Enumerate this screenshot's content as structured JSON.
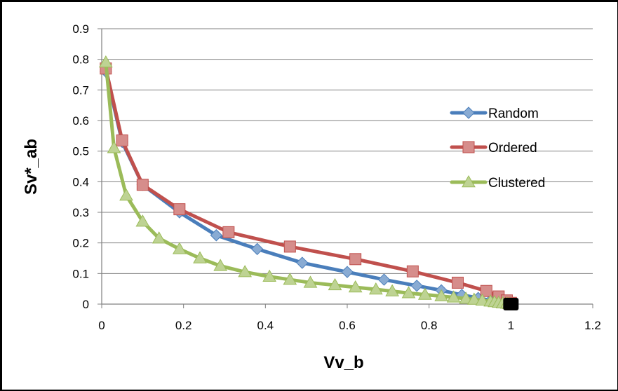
{
  "chart_data": {
    "type": "line",
    "title": "",
    "xlabel": "Vv_b",
    "ylabel": "Sv*_ab",
    "xlim": [
      0,
      1.2
    ],
    "ylim": [
      0,
      0.9
    ],
    "x_ticks": [
      "0",
      "0.2",
      "0.4",
      "0.6",
      "0.8",
      "1",
      "1.2"
    ],
    "y_ticks": [
      "0",
      "0.1",
      "0.2",
      "0.3",
      "0.4",
      "0.5",
      "0.6",
      "0.7",
      "0.8",
      "0.9"
    ],
    "grid": "horizontal",
    "legend_position": "right",
    "series": [
      {
        "name": "Random",
        "color": "#4a7ebb",
        "marker": "diamond",
        "x": [
          0.01,
          0.05,
          0.1,
          0.19,
          0.28,
          0.38,
          0.49,
          0.6,
          0.69,
          0.77,
          0.83,
          0.88,
          0.92,
          0.95,
          0.97,
          0.98,
          0.99,
          1.0
        ],
        "y": [
          0.76,
          0.53,
          0.39,
          0.3,
          0.225,
          0.18,
          0.135,
          0.105,
          0.08,
          0.06,
          0.045,
          0.03,
          0.02,
          0.012,
          0.008,
          0.005,
          0.003,
          0.001
        ]
      },
      {
        "name": "Ordered",
        "color": "#c0504d",
        "marker": "square",
        "x": [
          0.01,
          0.05,
          0.1,
          0.19,
          0.31,
          0.46,
          0.62,
          0.76,
          0.87,
          0.94,
          0.97,
          0.99,
          1.0
        ],
        "y": [
          0.77,
          0.535,
          0.39,
          0.31,
          0.235,
          0.188,
          0.147,
          0.107,
          0.07,
          0.043,
          0.025,
          0.012,
          0.004
        ]
      },
      {
        "name": "Clustered",
        "color": "#9bbb59",
        "marker": "triangle",
        "x": [
          0.01,
          0.03,
          0.06,
          0.1,
          0.14,
          0.19,
          0.24,
          0.29,
          0.35,
          0.41,
          0.46,
          0.51,
          0.57,
          0.62,
          0.67,
          0.71,
          0.75,
          0.79,
          0.83,
          0.86,
          0.89,
          0.91,
          0.93,
          0.95,
          0.96,
          0.97,
          0.98,
          0.99,
          0.995,
          1.0
        ],
        "y": [
          0.79,
          0.51,
          0.355,
          0.27,
          0.215,
          0.18,
          0.15,
          0.125,
          0.105,
          0.09,
          0.08,
          0.07,
          0.062,
          0.055,
          0.048,
          0.042,
          0.036,
          0.031,
          0.026,
          0.022,
          0.018,
          0.015,
          0.012,
          0.009,
          0.007,
          0.005,
          0.003,
          0.002,
          0.001,
          0.0
        ]
      }
    ]
  }
}
